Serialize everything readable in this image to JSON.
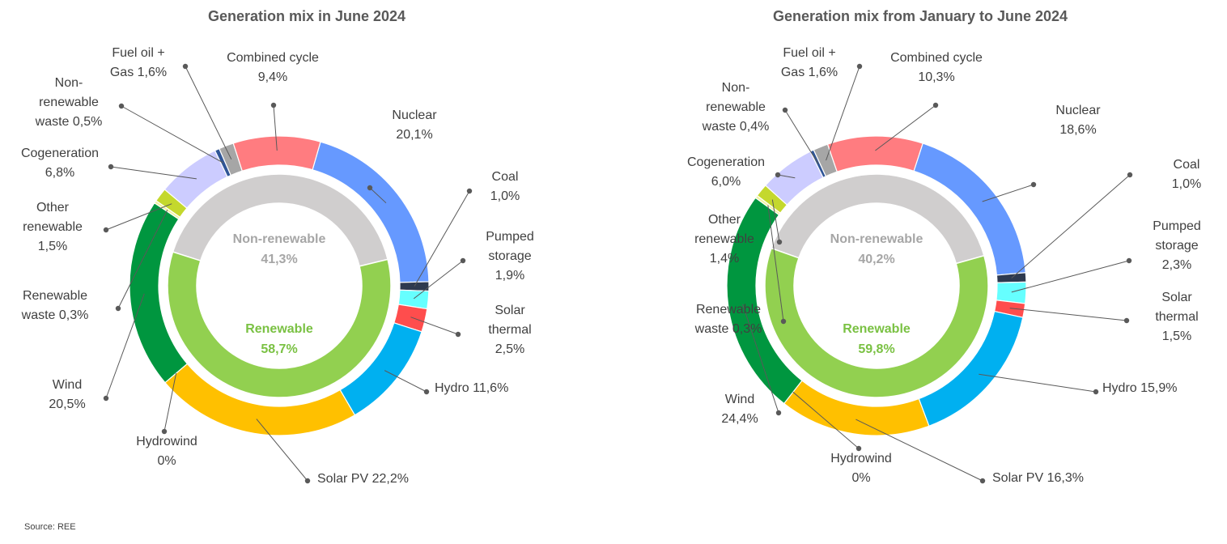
{
  "source_text": "Source: REE",
  "colors": {
    "nuclear": "#6699ff",
    "coal": "#2e3a4f",
    "pumped_storage": "#66ffff",
    "solar_thermal": "#ff4d4d",
    "hydro": "#00b0f0",
    "solar_pv": "#ffc000",
    "hydrowind": "#1f7a3a",
    "wind": "#00963f",
    "renewable_waste": "#f2f2a0",
    "other_renewable": "#c4d82d",
    "cogeneration": "#ccccff",
    "non_renewable_waste": "#2f5597",
    "fuel_gas": "#a6a6a6",
    "combined_cycle": "#ff7c80",
    "inner_non_renewable": "#d0cece",
    "inner_renewable": "#92d050",
    "label_non_renewable": "#a6a6a6",
    "label_renewable": "#7ac143",
    "leader": "#595959"
  },
  "chart_data": [
    {
      "type": "pie",
      "title": "Generation mix in June 2024",
      "outer_ring": [
        {
          "key": "nuclear",
          "label_lines": [
            "Nuclear",
            "20,1%"
          ],
          "value": 20.1
        },
        {
          "key": "coal",
          "label_lines": [
            "Coal",
            "1,0%"
          ],
          "value": 1.0
        },
        {
          "key": "pumped_storage",
          "label_lines": [
            "Pumped",
            "storage",
            "1,9%"
          ],
          "value": 1.9
        },
        {
          "key": "solar_thermal",
          "label_lines": [
            "Solar",
            "thermal",
            "2,5%"
          ],
          "value": 2.5
        },
        {
          "key": "hydro",
          "label_lines": [
            "Hydro 11,6%"
          ],
          "value": 11.6
        },
        {
          "key": "solar_pv",
          "label_lines": [
            "Solar PV 22,2%"
          ],
          "value": 22.2
        },
        {
          "key": "hydrowind",
          "label_lines": [
            "Hydrowind",
            "0%"
          ],
          "value": 0.0
        },
        {
          "key": "wind",
          "label_lines": [
            "Wind",
            "20,5%"
          ],
          "value": 20.5
        },
        {
          "key": "renewable_waste",
          "label_lines": [
            "Renewable",
            "waste 0,3%"
          ],
          "value": 0.3
        },
        {
          "key": "other_renewable",
          "label_lines": [
            "Other",
            "renewable",
            "1,5%"
          ],
          "value": 1.5
        },
        {
          "key": "cogeneration",
          "label_lines": [
            "Cogeneration",
            "6,8%"
          ],
          "value": 6.8
        },
        {
          "key": "non_renewable_waste",
          "label_lines": [
            "Non-",
            "renewable",
            "waste 0,5%"
          ],
          "value": 0.5
        },
        {
          "key": "fuel_gas",
          "label_lines": [
            "Fuel oil +",
            "Gas 1,6%"
          ],
          "value": 1.6
        },
        {
          "key": "combined_cycle",
          "label_lines": [
            "Combined cycle",
            "9,4%"
          ],
          "value": 9.4
        }
      ],
      "inner_ring": [
        {
          "key": "inner_non_renewable",
          "name": "Non-renewable",
          "value_text": "41,3%",
          "value": 41.3
        },
        {
          "key": "inner_renewable",
          "name": "Renewable",
          "value_text": "58,7%",
          "value": 58.7
        }
      ]
    },
    {
      "type": "pie",
      "title": "Generation mix from January to June 2024",
      "outer_ring": [
        {
          "key": "nuclear",
          "label_lines": [
            "Nuclear",
            "18,6%"
          ],
          "value": 18.6
        },
        {
          "key": "coal",
          "label_lines": [
            "Coal",
            "1,0%"
          ],
          "value": 1.0
        },
        {
          "key": "pumped_storage",
          "label_lines": [
            "Pumped",
            "storage",
            "2,3%"
          ],
          "value": 2.3
        },
        {
          "key": "solar_thermal",
          "label_lines": [
            "Solar",
            "thermal",
            "1,5%"
          ],
          "value": 1.5
        },
        {
          "key": "hydro",
          "label_lines": [
            "Hydro 15,9%"
          ],
          "value": 15.9
        },
        {
          "key": "solar_pv",
          "label_lines": [
            "Solar PV 16,3%"
          ],
          "value": 16.3
        },
        {
          "key": "hydrowind",
          "label_lines": [
            "Hydrowind",
            "0%"
          ],
          "value": 0.0
        },
        {
          "key": "wind",
          "label_lines": [
            "Wind",
            "24,4%"
          ],
          "value": 24.4
        },
        {
          "key": "renewable_waste",
          "label_lines": [
            "Renewable",
            "waste 0,3%"
          ],
          "value": 0.3
        },
        {
          "key": "other_renewable",
          "label_lines": [
            "Other",
            "renewable",
            "1,4%"
          ],
          "value": 1.4
        },
        {
          "key": "cogeneration",
          "label_lines": [
            "Cogeneration",
            "6,0%"
          ],
          "value": 6.0
        },
        {
          "key": "non_renewable_waste",
          "label_lines": [
            "Non-",
            "renewable",
            "waste 0,4%"
          ],
          "value": 0.4
        },
        {
          "key": "fuel_gas",
          "label_lines": [
            "Fuel oil +",
            "Gas 1,6%"
          ],
          "value": 1.6
        },
        {
          "key": "combined_cycle",
          "label_lines": [
            "Combined cycle",
            "10,3%"
          ],
          "value": 10.3
        }
      ],
      "inner_ring": [
        {
          "key": "inner_non_renewable",
          "name": "Non-renewable",
          "value_text": "40,2%",
          "value": 40.2
        },
        {
          "key": "inner_renewable",
          "name": "Renewable",
          "value_text": "59,8%",
          "value": 59.8
        }
      ]
    }
  ]
}
